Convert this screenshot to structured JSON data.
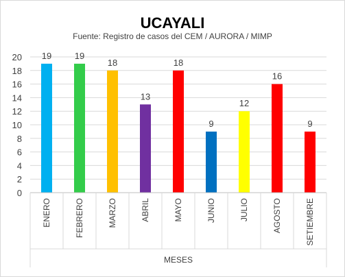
{
  "chart_data": {
    "type": "bar",
    "title": "UCAYALI",
    "subtitle": "Fuente: Registro de casos del CEM / AURORA / MIMP",
    "xlabel": "MESES",
    "ylabel": "",
    "ylim": [
      0,
      20
    ],
    "yticks": [
      "0",
      "2",
      "4",
      "6",
      "8",
      "10",
      "12",
      "14",
      "16",
      "18",
      "20"
    ],
    "grid": true,
    "categories": [
      "ENERO",
      "FEBRERO",
      "MARZO",
      "ABRIL",
      "MAYO",
      "JUNIO",
      "JULIO",
      "AGOSTO",
      "SETIEMBRE"
    ],
    "values": [
      19,
      19,
      18,
      13,
      18,
      9,
      12,
      16,
      9
    ],
    "colors": [
      "#00B0F0",
      "#33CC4A",
      "#FFC000",
      "#7030A0",
      "#FF0000",
      "#0070C0",
      "#FFFF00",
      "#FF0000",
      "#FF0000"
    ]
  }
}
